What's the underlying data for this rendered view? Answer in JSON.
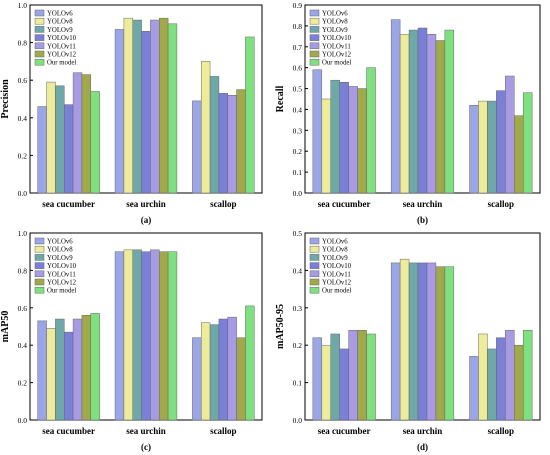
{
  "series_colors": [
    "#9aa6e6",
    "#ecec9a",
    "#6fa8a8",
    "#7a7fd8",
    "#a79be3",
    "#a2a94a",
    "#7fe07f"
  ],
  "chart_data": [
    {
      "type": "bar",
      "panel_label": "(a)",
      "ylabel": "Precision",
      "ylim": [
        0,
        1.0
      ],
      "yticks": [
        "0.0",
        "0.2",
        "0.4",
        "0.6",
        "0.8",
        "1.0"
      ],
      "categories": [
        "sea cucumber",
        "sea urchin",
        "scallop"
      ],
      "legend_position": "top-left",
      "series": [
        {
          "name": "YOLOv6",
          "values": [
            0.46,
            0.87,
            0.49
          ]
        },
        {
          "name": "YOLOv8",
          "values": [
            0.59,
            0.93,
            0.7
          ]
        },
        {
          "name": "YOLOv9",
          "values": [
            0.57,
            0.92,
            0.62
          ]
        },
        {
          "name": "YOLOv10",
          "values": [
            0.47,
            0.86,
            0.53
          ]
        },
        {
          "name": "YOLOv11",
          "values": [
            0.64,
            0.92,
            0.52
          ]
        },
        {
          "name": "YOLOv12",
          "values": [
            0.63,
            0.93,
            0.55
          ]
        },
        {
          "name": "Our model",
          "values": [
            0.54,
            0.9,
            0.83
          ]
        }
      ]
    },
    {
      "type": "bar",
      "panel_label": "(b)",
      "ylabel": "Recall",
      "ylim": [
        0,
        0.9
      ],
      "yticks": [
        "0.0",
        "0.1",
        "0.2",
        "0.3",
        "0.4",
        "0.5",
        "0.6",
        "0.7",
        "0.8",
        "0.9"
      ],
      "categories": [
        "sea cucumber",
        "sea urchin",
        "scallop"
      ],
      "legend_position": "top-left",
      "series": [
        {
          "name": "YOLOv6",
          "values": [
            0.59,
            0.83,
            0.42
          ]
        },
        {
          "name": "YOLOv8",
          "values": [
            0.45,
            0.76,
            0.44
          ]
        },
        {
          "name": "YOLOv9",
          "values": [
            0.54,
            0.78,
            0.44
          ]
        },
        {
          "name": "YOLOv10",
          "values": [
            0.53,
            0.79,
            0.49
          ]
        },
        {
          "name": "YOLOv11",
          "values": [
            0.51,
            0.76,
            0.56
          ]
        },
        {
          "name": "YOLOv12",
          "values": [
            0.5,
            0.73,
            0.37
          ]
        },
        {
          "name": "Our model",
          "values": [
            0.6,
            0.78,
            0.48
          ]
        }
      ]
    },
    {
      "type": "bar",
      "panel_label": "(c)",
      "ylabel": "mAP50",
      "ylim": [
        0,
        1.0
      ],
      "yticks": [
        "0.0",
        "0.2",
        "0.4",
        "0.6",
        "0.8",
        "1.0"
      ],
      "categories": [
        "sea cucumber",
        "sea urchin",
        "scallop"
      ],
      "legend_position": "top-left",
      "series": [
        {
          "name": "YOLOv6",
          "values": [
            0.53,
            0.9,
            0.44
          ]
        },
        {
          "name": "YOLOv8",
          "values": [
            0.49,
            0.91,
            0.52
          ]
        },
        {
          "name": "YOLOv9",
          "values": [
            0.54,
            0.91,
            0.51
          ]
        },
        {
          "name": "YOLOv10",
          "values": [
            0.47,
            0.9,
            0.54
          ]
        },
        {
          "name": "YOLOv11",
          "values": [
            0.54,
            0.91,
            0.55
          ]
        },
        {
          "name": "YOLOv12",
          "values": [
            0.56,
            0.9,
            0.44
          ]
        },
        {
          "name": "Our model",
          "values": [
            0.57,
            0.9,
            0.61
          ]
        }
      ]
    },
    {
      "type": "bar",
      "panel_label": "(d)",
      "ylabel": "mAP50-95",
      "ylim": [
        0,
        0.5
      ],
      "yticks": [
        "0.0",
        "0.1",
        "0.2",
        "0.3",
        "0.4",
        "0.5"
      ],
      "categories": [
        "sea cucumber",
        "sea urchin",
        "scallop"
      ],
      "legend_position": "top-left",
      "series": [
        {
          "name": "YOLOv6",
          "values": [
            0.22,
            0.42,
            0.17
          ]
        },
        {
          "name": "YOLOv8",
          "values": [
            0.2,
            0.43,
            0.23
          ]
        },
        {
          "name": "YOLOv9",
          "values": [
            0.23,
            0.42,
            0.19
          ]
        },
        {
          "name": "YOLOv10",
          "values": [
            0.19,
            0.42,
            0.22
          ]
        },
        {
          "name": "YOLOv11",
          "values": [
            0.24,
            0.42,
            0.24
          ]
        },
        {
          "name": "YOLOv12",
          "values": [
            0.24,
            0.41,
            0.2
          ]
        },
        {
          "name": "Our model",
          "values": [
            0.23,
            0.41,
            0.24
          ]
        }
      ]
    }
  ]
}
